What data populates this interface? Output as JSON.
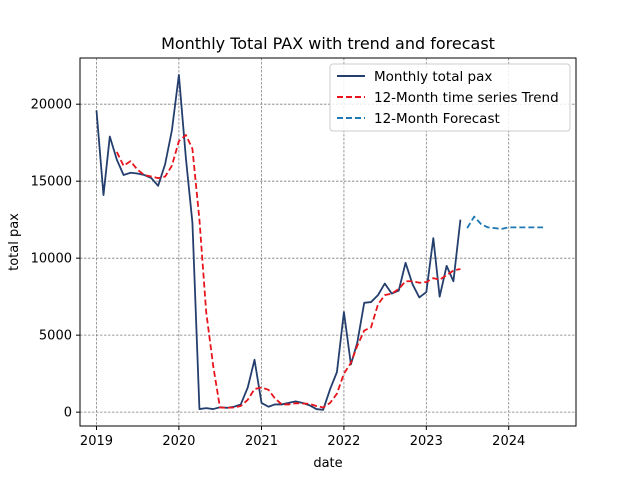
{
  "chart_data": {
    "type": "line",
    "title": "Monthly Total PAX with trend and forecast",
    "xlabel": "date",
    "ylabel": "total pax",
    "xlim": [
      "2018-10-20",
      "2024-10-25"
    ],
    "ylim": [
      -900,
      23000
    ],
    "x_ticks": [
      "2019",
      "2020",
      "2021",
      "2022",
      "2023",
      "2024"
    ],
    "y_ticks": [
      0,
      5000,
      10000,
      15000,
      20000
    ],
    "grid": true,
    "legend_position": "upper-right",
    "series": [
      {
        "name": "Monthly total pax",
        "color": "#243f6e",
        "style": "solid",
        "points": [
          [
            "2019-01-01",
            19600
          ],
          [
            "2019-02-01",
            14100
          ],
          [
            "2019-03-01",
            17900
          ],
          [
            "2019-04-01",
            16400
          ],
          [
            "2019-05-01",
            15400
          ],
          [
            "2019-06-01",
            15550
          ],
          [
            "2019-07-01",
            15500
          ],
          [
            "2019-08-01",
            15400
          ],
          [
            "2019-09-01",
            15200
          ],
          [
            "2019-10-01",
            14700
          ],
          [
            "2019-11-01",
            16100
          ],
          [
            "2019-12-01",
            18300
          ],
          [
            "2020-01-01",
            21900
          ],
          [
            "2020-02-01",
            16500
          ],
          [
            "2020-03-01",
            12300
          ],
          [
            "2020-04-01",
            200
          ],
          [
            "2020-05-01",
            260
          ],
          [
            "2020-06-01",
            200
          ],
          [
            "2020-07-01",
            320
          ],
          [
            "2020-08-01",
            280
          ],
          [
            "2020-09-01",
            350
          ],
          [
            "2020-10-01",
            500
          ],
          [
            "2020-11-01",
            1600
          ],
          [
            "2020-12-01",
            3400
          ],
          [
            "2021-01-01",
            600
          ],
          [
            "2021-02-01",
            350
          ],
          [
            "2021-03-01",
            500
          ],
          [
            "2021-04-01",
            500
          ],
          [
            "2021-05-01",
            600
          ],
          [
            "2021-06-01",
            700
          ],
          [
            "2021-07-01",
            600
          ],
          [
            "2021-08-01",
            450
          ],
          [
            "2021-09-01",
            200
          ],
          [
            "2021-10-01",
            150
          ],
          [
            "2021-11-01",
            1500
          ],
          [
            "2021-12-01",
            2600
          ],
          [
            "2022-01-01",
            6500
          ],
          [
            "2022-02-01",
            3100
          ],
          [
            "2022-03-01",
            4500
          ],
          [
            "2022-04-01",
            7100
          ],
          [
            "2022-05-01",
            7150
          ],
          [
            "2022-06-01",
            7600
          ],
          [
            "2022-07-01",
            8350
          ],
          [
            "2022-08-01",
            7700
          ],
          [
            "2022-09-01",
            7900
          ],
          [
            "2022-10-01",
            9700
          ],
          [
            "2022-11-01",
            8300
          ],
          [
            "2022-12-01",
            7450
          ],
          [
            "2023-01-01",
            7800
          ],
          [
            "2023-02-01",
            11300
          ],
          [
            "2023-03-01",
            7500
          ],
          [
            "2023-04-01",
            9500
          ],
          [
            "2023-05-01",
            8500
          ],
          [
            "2023-06-01",
            12500
          ]
        ]
      },
      {
        "name": "12-Month time series Trend",
        "color": "#e8141c",
        "style": "dashed",
        "points": [
          [
            "2019-04-01",
            16900
          ],
          [
            "2019-05-01",
            16000
          ],
          [
            "2019-06-01",
            16300
          ],
          [
            "2019-07-01",
            15750
          ],
          [
            "2019-08-01",
            15400
          ],
          [
            "2019-09-01",
            15300
          ],
          [
            "2019-10-01",
            15200
          ],
          [
            "2019-11-01",
            15300
          ],
          [
            "2019-12-01",
            16000
          ],
          [
            "2020-01-01",
            17600
          ],
          [
            "2020-02-01",
            18000
          ],
          [
            "2020-03-01",
            17100
          ],
          [
            "2020-04-01",
            12500
          ],
          [
            "2020-05-01",
            6500
          ],
          [
            "2020-06-01",
            3000
          ],
          [
            "2020-07-01",
            300
          ],
          [
            "2020-08-01",
            280
          ],
          [
            "2020-09-01",
            300
          ],
          [
            "2020-10-01",
            400
          ],
          [
            "2020-11-01",
            800
          ],
          [
            "2020-12-01",
            1500
          ],
          [
            "2021-01-01",
            1600
          ],
          [
            "2021-02-01",
            1450
          ],
          [
            "2021-03-01",
            900
          ],
          [
            "2021-04-01",
            500
          ],
          [
            "2021-05-01",
            500
          ],
          [
            "2021-06-01",
            580
          ],
          [
            "2021-07-01",
            560
          ],
          [
            "2021-08-01",
            540
          ],
          [
            "2021-09-01",
            400
          ],
          [
            "2021-10-01",
            300
          ],
          [
            "2021-11-01",
            600
          ],
          [
            "2021-12-01",
            1200
          ],
          [
            "2022-01-01",
            2500
          ],
          [
            "2022-02-01",
            3200
          ],
          [
            "2022-03-01",
            4300
          ],
          [
            "2022-04-01",
            5300
          ],
          [
            "2022-05-01",
            5500
          ],
          [
            "2022-06-01",
            7000
          ],
          [
            "2022-07-01",
            7600
          ],
          [
            "2022-08-01",
            7700
          ],
          [
            "2022-09-01",
            8000
          ],
          [
            "2022-10-01",
            8500
          ],
          [
            "2022-11-01",
            8500
          ],
          [
            "2022-12-01",
            8400
          ],
          [
            "2023-01-01",
            8450
          ],
          [
            "2023-02-01",
            8700
          ],
          [
            "2023-03-01",
            8600
          ],
          [
            "2023-04-01",
            8900
          ],
          [
            "2023-05-01",
            9200
          ],
          [
            "2023-06-01",
            9300
          ]
        ]
      },
      {
        "name": "12-Month Forecast",
        "color": "#1f77b4",
        "style": "dashed",
        "points": [
          [
            "2023-07-01",
            11950
          ],
          [
            "2023-08-01",
            12700
          ],
          [
            "2023-09-01",
            12200
          ],
          [
            "2023-10-01",
            12000
          ],
          [
            "2023-11-01",
            11950
          ],
          [
            "2023-12-01",
            11900
          ],
          [
            "2024-01-01",
            12000
          ],
          [
            "2024-02-01",
            12000
          ],
          [
            "2024-03-01",
            12000
          ],
          [
            "2024-04-01",
            12000
          ],
          [
            "2024-05-01",
            12000
          ],
          [
            "2024-06-01",
            12000
          ]
        ]
      }
    ]
  }
}
